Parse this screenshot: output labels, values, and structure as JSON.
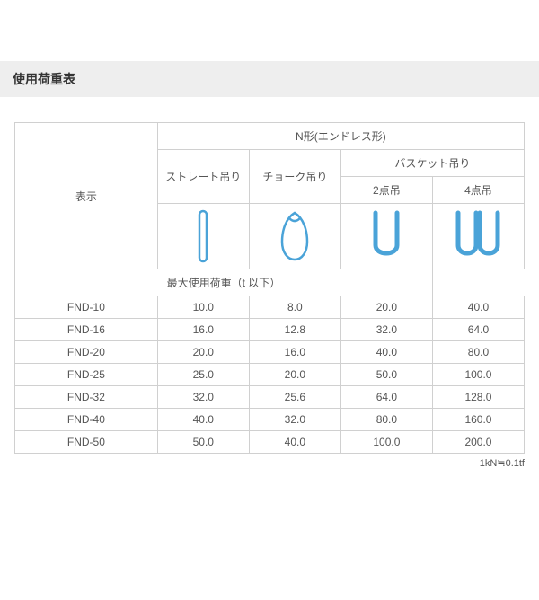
{
  "title": "使用荷重表",
  "header": {
    "display": "表示",
    "ntype": "N形(エンドレス形)",
    "straight": "ストレート吊り",
    "choke": "チョーク吊り",
    "basket": "バスケット吊り",
    "two_point": "2点吊",
    "four_point": "4点吊",
    "max_load": "最大使用荷重（t 以下）"
  },
  "icon_color": "#4aa3d8",
  "rows": [
    {
      "name": "FND-10",
      "c1": "10.0",
      "c2": "8.0",
      "c3": "20.0",
      "c4": "40.0"
    },
    {
      "name": "FND-16",
      "c1": "16.0",
      "c2": "12.8",
      "c3": "32.0",
      "c4": "64.0"
    },
    {
      "name": "FND-20",
      "c1": "20.0",
      "c2": "16.0",
      "c3": "40.0",
      "c4": "80.0"
    },
    {
      "name": "FND-25",
      "c1": "25.0",
      "c2": "20.0",
      "c3": "50.0",
      "c4": "100.0"
    },
    {
      "name": "FND-32",
      "c1": "32.0",
      "c2": "25.6",
      "c3": "64.0",
      "c4": "128.0"
    },
    {
      "name": "FND-40",
      "c1": "40.0",
      "c2": "32.0",
      "c3": "80.0",
      "c4": "160.0"
    },
    {
      "name": "FND-50",
      "c1": "50.0",
      "c2": "40.0",
      "c3": "100.0",
      "c4": "200.0"
    }
  ],
  "footnote": "1kN≒0.1tf"
}
